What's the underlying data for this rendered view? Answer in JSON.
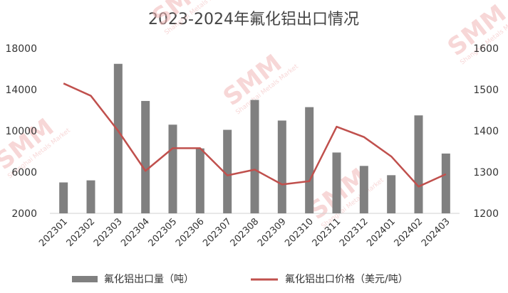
{
  "chart_data": {
    "type": "bar+line",
    "title": "2023-2024年氟化铝出口情况",
    "categories": [
      "202301",
      "202302",
      "202303",
      "202304",
      "202305",
      "202306",
      "202307",
      "202308",
      "202309",
      "202310",
      "202311",
      "202312",
      "202401",
      "202402",
      "202403"
    ],
    "series": [
      {
        "name": "氟化铝出口量（吨）",
        "type": "bar",
        "axis": "left",
        "color": "#808080",
        "values": [
          5000,
          5200,
          16500,
          12900,
          10600,
          8300,
          10100,
          13000,
          11000,
          12300,
          7900,
          6600,
          5700,
          11500,
          7800
        ]
      },
      {
        "name": "氟化铝出口价格（美元/吨）",
        "type": "line",
        "axis": "right",
        "color": "#c0504d",
        "values": [
          1515,
          1485,
          1400,
          1303,
          1358,
          1358,
          1292,
          1306,
          1270,
          1278,
          1410,
          1385,
          1338,
          1265,
          1295
        ]
      }
    ],
    "y_left": {
      "min": 2000,
      "max": 18000,
      "ticks": [
        "18000",
        "14000",
        "10000",
        "6000",
        "2000"
      ],
      "tick_values": [
        18000,
        14000,
        10000,
        6000,
        2000
      ]
    },
    "y_right": {
      "min": 1200,
      "max": 1600,
      "ticks": [
        "1600",
        "1500",
        "1400",
        "1300",
        "1200"
      ],
      "tick_values": [
        1600,
        1500,
        1400,
        1300,
        1200
      ]
    },
    "grid": false,
    "legend_position": "bottom"
  },
  "watermark": {
    "text": "SMM",
    "subtext": "Shanghai Metals Market",
    "color": "#f2b7b7"
  }
}
